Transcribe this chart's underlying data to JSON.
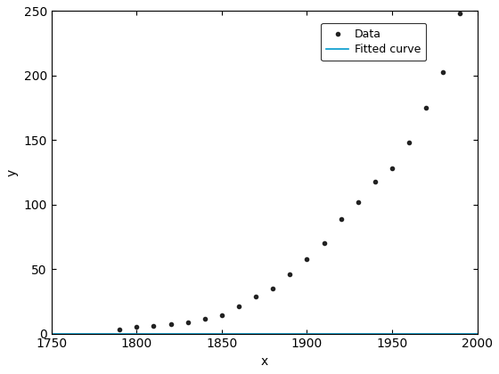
{
  "data_x": [
    1790,
    1800,
    1810,
    1820,
    1830,
    1840,
    1850,
    1860,
    1870,
    1880,
    1890,
    1900,
    1910,
    1920,
    1930,
    1940,
    1950,
    1960,
    1970,
    1980,
    1990
  ],
  "data_y": [
    3.0,
    5.0,
    5.7,
    7.2,
    9.0,
    11.5,
    14.5,
    21.0,
    29.0,
    35.0,
    46.0,
    58.0,
    70.0,
    89.0,
    102.0,
    118.0,
    128.0,
    148.0,
    175.0,
    203.0,
    248.0
  ],
  "xlim": [
    1750,
    2000
  ],
  "ylim": [
    0,
    250
  ],
  "xticks": [
    1750,
    1800,
    1850,
    1900,
    1950,
    2000
  ],
  "yticks": [
    0,
    50,
    100,
    150,
    200,
    250
  ],
  "xlabel": "x",
  "ylabel": "y",
  "line_color": "#0099CC",
  "marker_color": "#222222",
  "legend_data_label": "Data",
  "legend_fit_label": "Fitted curve",
  "figsize": [
    5.6,
    4.2
  ],
  "dpi": 100
}
